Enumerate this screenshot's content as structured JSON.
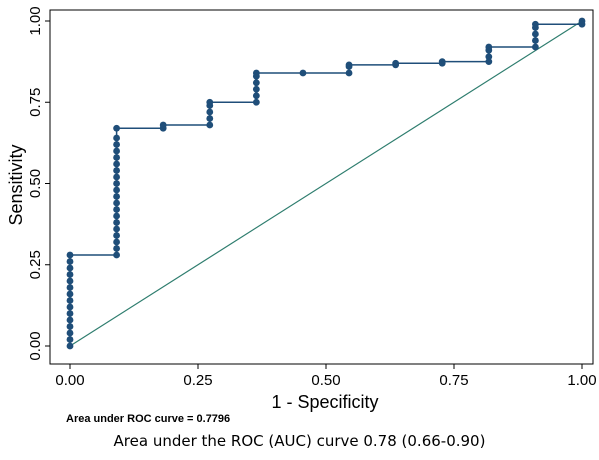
{
  "caption": "Area under the ROC  (AUC) curve 0.78 (0.66-0.90)",
  "chart_data": {
    "type": "line",
    "title": "",
    "xlabel": "1 - Specificity",
    "ylabel": "Sensitivity",
    "xlim": [
      0,
      1
    ],
    "ylim": [
      0,
      1
    ],
    "x_ticks": [
      "0.00",
      "0.25",
      "0.50",
      "0.75",
      "1.00"
    ],
    "y_ticks": [
      "0.00",
      "0.25",
      "0.50",
      "0.75",
      "1.00"
    ],
    "grid": false,
    "legend": "none",
    "annotation": "Area under ROC curve = 0.7796",
    "series": [
      {
        "color": "#1f4e79",
        "marker": "circle",
        "points": [
          [
            0.0,
            0.0
          ],
          [
            0.0,
            0.02
          ],
          [
            0.0,
            0.04
          ],
          [
            0.0,
            0.06
          ],
          [
            0.0,
            0.08
          ],
          [
            0.0,
            0.1
          ],
          [
            0.0,
            0.12
          ],
          [
            0.0,
            0.14
          ],
          [
            0.0,
            0.16
          ],
          [
            0.0,
            0.18
          ],
          [
            0.0,
            0.2
          ],
          [
            0.0,
            0.22
          ],
          [
            0.0,
            0.24
          ],
          [
            0.0,
            0.26
          ],
          [
            0.0,
            0.28
          ],
          [
            0.091,
            0.28
          ],
          [
            0.091,
            0.3
          ],
          [
            0.091,
            0.32
          ],
          [
            0.091,
            0.34
          ],
          [
            0.091,
            0.36
          ],
          [
            0.091,
            0.38
          ],
          [
            0.091,
            0.4
          ],
          [
            0.091,
            0.42
          ],
          [
            0.091,
            0.44
          ],
          [
            0.091,
            0.46
          ],
          [
            0.091,
            0.48
          ],
          [
            0.091,
            0.5
          ],
          [
            0.091,
            0.52
          ],
          [
            0.091,
            0.54
          ],
          [
            0.091,
            0.56
          ],
          [
            0.091,
            0.58
          ],
          [
            0.091,
            0.6
          ],
          [
            0.091,
            0.62
          ],
          [
            0.091,
            0.64
          ],
          [
            0.091,
            0.67
          ],
          [
            0.182,
            0.67
          ],
          [
            0.182,
            0.68
          ],
          [
            0.273,
            0.68
          ],
          [
            0.273,
            0.7
          ],
          [
            0.273,
            0.72
          ],
          [
            0.273,
            0.74
          ],
          [
            0.273,
            0.75
          ],
          [
            0.364,
            0.75
          ],
          [
            0.364,
            0.77
          ],
          [
            0.364,
            0.79
          ],
          [
            0.364,
            0.81
          ],
          [
            0.364,
            0.83
          ],
          [
            0.364,
            0.84
          ],
          [
            0.455,
            0.84
          ],
          [
            0.545,
            0.84
          ],
          [
            0.545,
            0.86
          ],
          [
            0.545,
            0.865
          ],
          [
            0.636,
            0.865
          ],
          [
            0.636,
            0.87
          ],
          [
            0.727,
            0.87
          ],
          [
            0.727,
            0.875
          ],
          [
            0.818,
            0.875
          ],
          [
            0.818,
            0.89
          ],
          [
            0.818,
            0.91
          ],
          [
            0.818,
            0.92
          ],
          [
            0.909,
            0.92
          ],
          [
            0.909,
            0.94
          ],
          [
            0.909,
            0.96
          ],
          [
            0.909,
            0.98
          ],
          [
            0.909,
            0.99
          ],
          [
            1.0,
            0.99
          ],
          [
            1.0,
            1.0
          ]
        ]
      },
      {
        "color": "#2e7d6e",
        "marker": "none",
        "points": [
          [
            0,
            0
          ],
          [
            1,
            1
          ]
        ]
      }
    ]
  }
}
